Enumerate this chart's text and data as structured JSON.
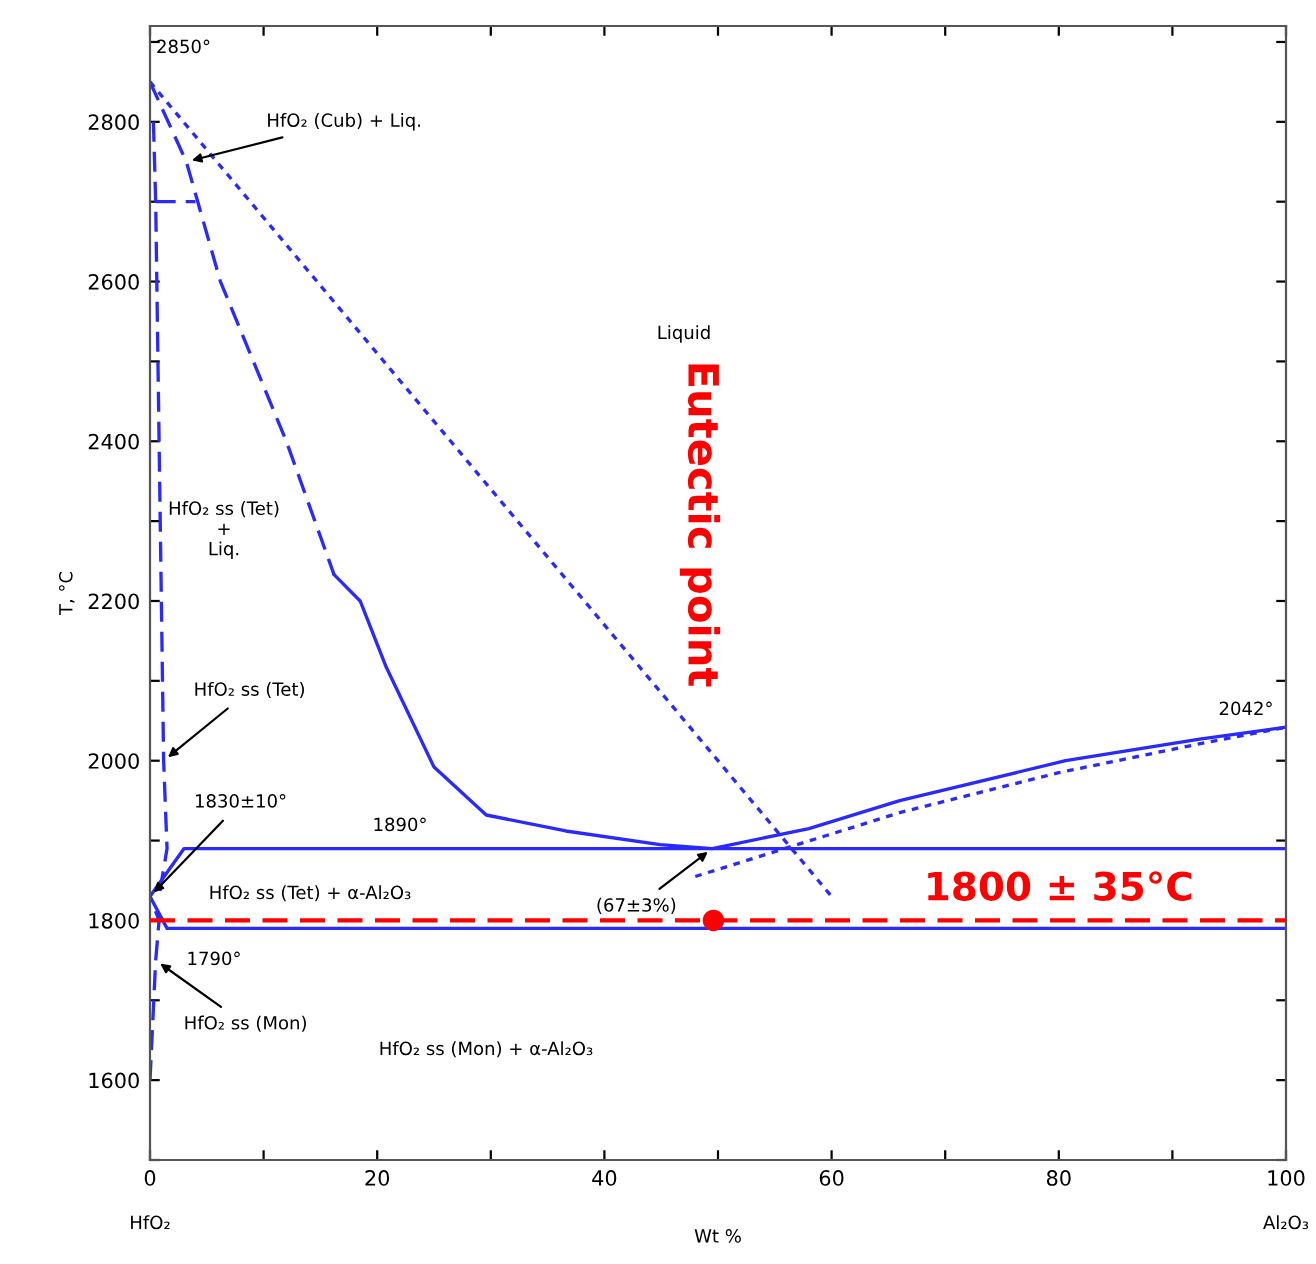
{
  "chart_data": {
    "type": "line",
    "xlabel": "Wt %",
    "ylabel": "T, °C",
    "xlim": [
      0,
      100
    ],
    "ylim": [
      1500,
      2920
    ],
    "xticks": [
      0,
      {
        "value": 10,
        "label": null
      },
      20,
      {
        "value": 30,
        "label": null
      },
      40,
      {
        "value": 50,
        "label": null
      },
      60,
      {
        "value": 70,
        "label": null
      },
      80,
      {
        "value": 90,
        "label": null
      },
      100
    ],
    "yticks": [
      {
        "value": 1500,
        "label": null
      },
      1600,
      {
        "value": 1700,
        "label": null
      },
      1800,
      {
        "value": 1900,
        "label": null
      },
      2000,
      {
        "value": 2100,
        "label": null
      },
      2200,
      {
        "value": 2300,
        "label": null
      },
      2400,
      {
        "value": 2500,
        "label": null
      },
      2600,
      {
        "value": 2700,
        "label": null
      },
      2800,
      {
        "value": 2900,
        "label": null
      }
    ],
    "grid": false,
    "legend": false,
    "marker": "none",
    "series": [
      {
        "color": "#2a2aff",
        "line_style": "solid",
        "x": [
          16.2,
          18.5,
          20.8,
          25,
          29.6,
          36.6,
          44.9,
          49.5,
          58,
          66,
          80.6,
          92.4,
          100
        ],
        "values": [
          2233,
          2200,
          2117,
          1992,
          1932,
          1912,
          1895,
          1890,
          1915,
          1950,
          2000,
          2027,
          2042
        ]
      },
      {
        "color": "#2a2aff",
        "line_style": "dashed",
        "x": [
          0,
          3.2,
          6.2,
          12,
          16.2
        ],
        "values": [
          2850,
          2750,
          2600,
          2400,
          2233
        ]
      },
      {
        "color": "#2a2aff",
        "line_style": "dashed",
        "x": [
          0.5,
          4
        ],
        "values": [
          2700,
          2700
        ]
      },
      {
        "color": "#2a2aff",
        "line_style": "dashed",
        "x": [
          0.3,
          0.5,
          1,
          1.2,
          1.5,
          0.8
        ],
        "values": [
          2800,
          2700,
          2200,
          2000,
          1890,
          1830
        ]
      },
      {
        "color": "#2a2aff",
        "line_style": "solid",
        "x": [
          0,
          3,
          100
        ],
        "values": [
          1830,
          1890,
          1890
        ]
      },
      {
        "color": "#2a2aff",
        "line_style": "solid",
        "x": [
          0,
          1.5,
          100
        ],
        "values": [
          1830,
          1790,
          1790
        ]
      },
      {
        "color": "#2a2aff",
        "line_style": "dashed",
        "x": [
          0,
          0.5,
          0.8,
          0
        ],
        "values": [
          1600,
          1750,
          1800,
          1830
        ]
      },
      {
        "color": "#2a2aff",
        "line_style": "dotted",
        "x": [
          0,
          60
        ],
        "values": [
          2850,
          1830
        ]
      },
      {
        "color": "#2a2aff",
        "line_style": "dotted",
        "x": [
          48,
          66,
          80,
          92,
          100
        ],
        "values": [
          1855,
          1935,
          1985,
          2020,
          2042
        ]
      },
      {
        "type": "scatter",
        "marker": "circle",
        "color": "#ff0000",
        "x": [
          49.6
        ],
        "values": [
          1800
        ]
      }
    ],
    "ref_lines": [
      {
        "axis": "y",
        "value": 1800,
        "label": "1800 ± 35°C",
        "color": "#ff0000",
        "line_style": "dashed"
      }
    ],
    "annotations": [
      {
        "text": "HfO₂ (Cub) + Liq.",
        "x": 3.2,
        "y": 2750
      },
      {
        "text": "HfO₂ ss (Tet)",
        "x": 1.2,
        "y": 2000
      },
      {
        "text": "1830±10°",
        "x": 0,
        "y": 1830
      },
      {
        "text": "(67±3%)",
        "x": 49.5,
        "y": 1890
      },
      {
        "text": "HfO₂ ss (Mon)",
        "x": 0.5,
        "y": 1750
      },
      "2850°",
      "Liquid",
      "HfO₂ ss (Tet)\n+\nLiq.",
      "1890°",
      "HfO₂ ss (Tet) + α-Al₂O₃",
      "1790°",
      "HfO₂ ss (Mon) + α-Al₂O₃",
      "2042°",
      "Eutectic point",
      "HfO₂",
      "Al₂O₃"
    ]
  }
}
